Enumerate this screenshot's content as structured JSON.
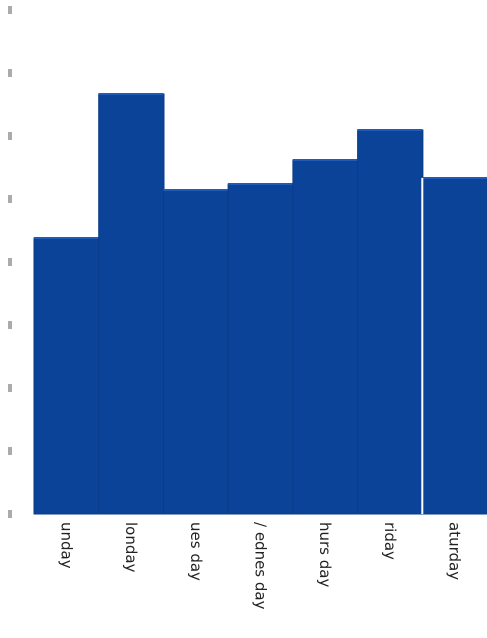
{
  "chart_data": {
    "type": "bar",
    "orientation": "vertical",
    "categories": [
      "unday",
      "londay",
      "ues day",
      "/ ednes day",
      "hurs day",
      "riday",
      "aturday"
    ],
    "values": [
      4.6,
      7.0,
      5.4,
      5.5,
      5.9,
      6.4,
      5.6
    ],
    "ylim": [
      0,
      8.4
    ],
    "y_ticks": [
      "",
      "",
      "",
      "",
      "",
      "",
      "",
      "",
      ""
    ],
    "grid": false,
    "legend": "none",
    "colors": {
      "bar": "#0b4398",
      "bar_edge": "#0a3b86",
      "tick": "#666666",
      "label": "#222222"
    }
  }
}
